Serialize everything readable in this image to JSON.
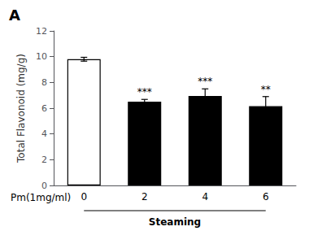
{
  "chart_data": {
    "type": "bar",
    "title": "A",
    "ylabel": "Total Flavonoid (mg/g)",
    "x_row_label": "Pm(1mg/ml)",
    "xlabel": "Steaming",
    "categories": [
      "0",
      "2",
      "4",
      "6"
    ],
    "values": [
      9.8,
      6.5,
      6.95,
      6.15
    ],
    "errors": [
      0.15,
      0.18,
      0.55,
      0.75
    ],
    "colors": [
      "#ffffff",
      "#000000",
      "#000000",
      "#000000"
    ],
    "annotations": [
      {
        "category": "2",
        "text": "***"
      },
      {
        "category": "4",
        "text": "***"
      },
      {
        "category": "6",
        "text": "**"
      }
    ],
    "ylim": [
      0,
      12
    ],
    "yticks": [
      0,
      2,
      4,
      6,
      8,
      10,
      12
    ],
    "grid": false
  }
}
